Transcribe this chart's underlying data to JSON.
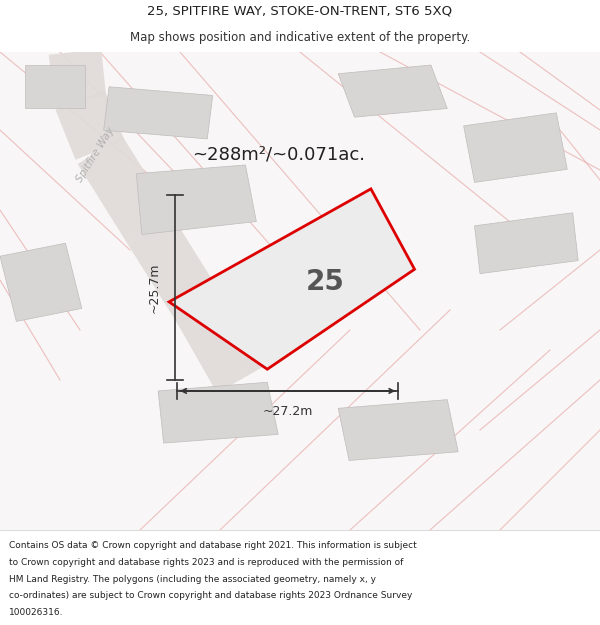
{
  "title_line1": "25, SPITFIRE WAY, STOKE-ON-TRENT, ST6 5XQ",
  "title_line2": "Map shows position and indicative extent of the property.",
  "area_text": "~288m²/~0.071ac.",
  "plot_number": "25",
  "dim_horizontal": "~27.2m",
  "dim_vertical": "~25.7m",
  "road_label": "Spitfire Way",
  "footer_text": "Contains OS data © Crown copyright and database right 2021. This information is subject to Crown copyright and database rights 2023 and is reproduced with the permission of HM Land Registry. The polygons (including the associated geometry, namely x, y co-ordinates) are subject to Crown copyright and database rights 2023 Ordnance Survey 100026316.",
  "bg_color": "#f5f3f3",
  "map_bg": "#f8f6f6",
  "plot_fill": "#ececec",
  "plot_edge_color": "#dd0000",
  "road_fill": "#e8e5e5",
  "building_fill": "#d8d5d5",
  "building_edge": "#c0bcbc",
  "pink_line_color": "#e8a8a8",
  "title_bg": "#ffffff",
  "footer_bg": "#ffffff",
  "text_dark": "#333333",
  "text_gray": "#888888"
}
